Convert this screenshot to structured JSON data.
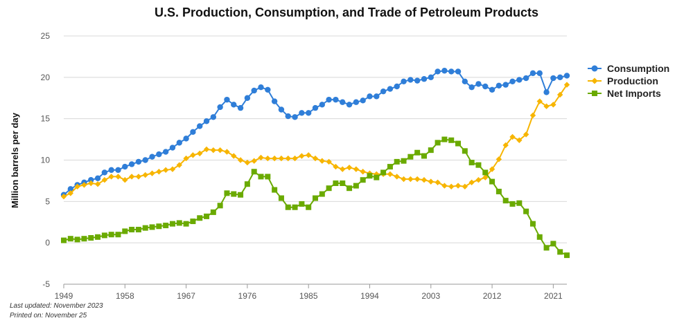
{
  "chart_data": {
    "type": "line",
    "title": "U.S. Production, Consumption, and Trade of Petroleum Products",
    "ylabel": "Million barrels per day",
    "xlabel": "",
    "ylim": [
      -5,
      25
    ],
    "yticks": [
      -5,
      0,
      5,
      10,
      15,
      20,
      25
    ],
    "xlim": [
      1949,
      2023
    ],
    "xticks": [
      1949,
      1958,
      1967,
      1976,
      1985,
      1994,
      2003,
      2012,
      2021
    ],
    "grid": true,
    "legend_position": "right",
    "x": [
      1949,
      1950,
      1951,
      1952,
      1953,
      1954,
      1955,
      1956,
      1957,
      1958,
      1959,
      1960,
      1961,
      1962,
      1963,
      1964,
      1965,
      1966,
      1967,
      1968,
      1969,
      1970,
      1971,
      1972,
      1973,
      1974,
      1975,
      1976,
      1977,
      1978,
      1979,
      1980,
      1981,
      1982,
      1983,
      1984,
      1985,
      1986,
      1987,
      1988,
      1989,
      1990,
      1991,
      1992,
      1993,
      1994,
      1995,
      1996,
      1997,
      1998,
      1999,
      2000,
      2001,
      2002,
      2003,
      2004,
      2005,
      2006,
      2007,
      2008,
      2009,
      2010,
      2011,
      2012,
      2013,
      2014,
      2015,
      2016,
      2017,
      2018,
      2019,
      2020,
      2021,
      2022,
      2023
    ],
    "series": [
      {
        "name": "Consumption",
        "color": "#2f7ed8",
        "marker": "circle",
        "values": [
          5.8,
          6.5,
          7.0,
          7.3,
          7.6,
          7.8,
          8.5,
          8.8,
          8.8,
          9.2,
          9.5,
          9.8,
          10.0,
          10.4,
          10.7,
          11.0,
          11.5,
          12.1,
          12.6,
          13.4,
          14.1,
          14.7,
          15.2,
          16.4,
          17.3,
          16.7,
          16.3,
          17.5,
          18.4,
          18.8,
          18.5,
          17.1,
          16.1,
          15.3,
          15.2,
          15.7,
          15.7,
          16.3,
          16.7,
          17.3,
          17.3,
          17.0,
          16.7,
          17.0,
          17.2,
          17.7,
          17.7,
          18.3,
          18.6,
          18.9,
          19.5,
          19.7,
          19.6,
          19.8,
          20.0,
          20.7,
          20.8,
          20.7,
          20.7,
          19.5,
          18.8,
          19.2,
          18.9,
          18.5,
          19.0,
          19.1,
          19.5,
          19.7,
          19.9,
          20.5,
          20.5,
          18.2,
          19.9,
          20.0,
          20.2
        ]
      },
      {
        "name": "Production",
        "color": "#f7b500",
        "marker": "diamond",
        "values": [
          5.6,
          6.0,
          6.8,
          7.0,
          7.2,
          7.1,
          7.6,
          8.0,
          8.0,
          7.6,
          8.0,
          8.0,
          8.2,
          8.4,
          8.6,
          8.8,
          8.9,
          9.4,
          10.2,
          10.6,
          10.8,
          11.3,
          11.2,
          11.2,
          11.0,
          10.5,
          10.0,
          9.7,
          9.9,
          10.3,
          10.2,
          10.2,
          10.2,
          10.2,
          10.2,
          10.5,
          10.6,
          10.2,
          9.9,
          9.8,
          9.2,
          8.9,
          9.1,
          8.9,
          8.6,
          8.4,
          8.3,
          8.3,
          8.3,
          8.0,
          7.7,
          7.7,
          7.7,
          7.6,
          7.4,
          7.3,
          6.9,
          6.8,
          6.9,
          6.8,
          7.3,
          7.6,
          7.9,
          8.9,
          10.1,
          11.8,
          12.8,
          12.4,
          13.1,
          15.4,
          17.1,
          16.5,
          16.7,
          17.9,
          19.1
        ]
      },
      {
        "name": "Net Imports",
        "color": "#6aaa00",
        "marker": "square",
        "values": [
          0.3,
          0.5,
          0.4,
          0.5,
          0.6,
          0.7,
          0.9,
          1.0,
          1.0,
          1.4,
          1.6,
          1.6,
          1.8,
          1.9,
          2.0,
          2.1,
          2.3,
          2.4,
          2.3,
          2.6,
          3.0,
          3.2,
          3.7,
          4.5,
          6.0,
          5.9,
          5.8,
          7.1,
          8.6,
          8.0,
          8.0,
          6.4,
          5.4,
          4.3,
          4.3,
          4.7,
          4.3,
          5.4,
          5.9,
          6.6,
          7.2,
          7.2,
          6.6,
          6.9,
          7.6,
          8.1,
          7.9,
          8.5,
          9.2,
          9.8,
          9.9,
          10.4,
          10.9,
          10.5,
          11.2,
          12.1,
          12.5,
          12.4,
          12.0,
          11.1,
          9.7,
          9.4,
          8.5,
          7.4,
          6.2,
          5.1,
          4.7,
          4.8,
          3.8,
          2.3,
          0.7,
          -0.6,
          -0.1,
          -1.1,
          -1.5
        ]
      }
    ]
  },
  "footer": {
    "updated": "Last updated: November 2023",
    "printed": "Printed on: November 25"
  }
}
